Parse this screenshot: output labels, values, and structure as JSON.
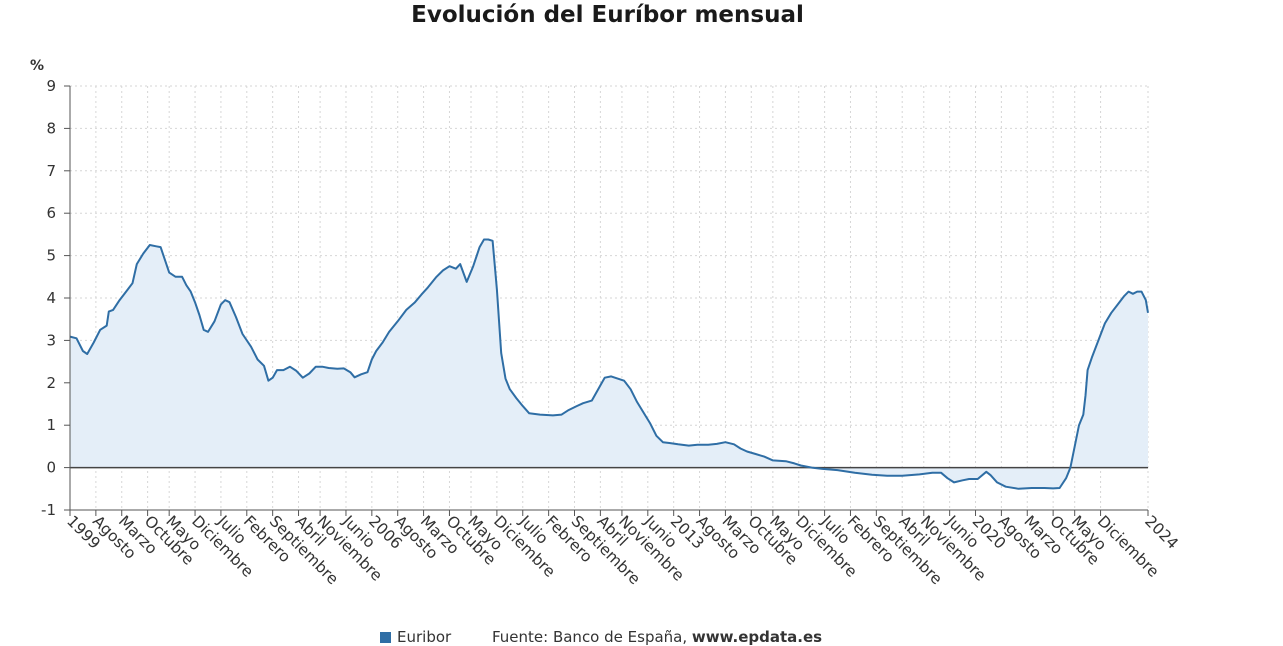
{
  "chart_data": {
    "type": "area",
    "title": "Evolución del Euríbor mensual",
    "yunit": "%",
    "ylim": [
      -1,
      9
    ],
    "yticks": [
      -1,
      0,
      1,
      2,
      3,
      4,
      5,
      6,
      7,
      8,
      9
    ],
    "xlim": [
      1999.0,
      2024.0
    ],
    "grid": true,
    "xtick_labels": [
      {
        "x": 1999.0,
        "label": "1999"
      },
      {
        "x": 1999.6,
        "label": "Agosto"
      },
      {
        "x": 2000.2,
        "label": "Marzo"
      },
      {
        "x": 2000.8,
        "label": "Octubre"
      },
      {
        "x": 2001.3,
        "label": "Mayo"
      },
      {
        "x": 2001.9,
        "label": "Diciembre"
      },
      {
        "x": 2002.5,
        "label": "Julio"
      },
      {
        "x": 2003.1,
        "label": "Febrero"
      },
      {
        "x": 2003.7,
        "label": "Septiembre"
      },
      {
        "x": 2004.3,
        "label": "Abril"
      },
      {
        "x": 2004.8,
        "label": "Noviembre"
      },
      {
        "x": 2005.4,
        "label": "Junio"
      },
      {
        "x": 2006.0,
        "label": "2006"
      },
      {
        "x": 2006.6,
        "label": "Agosto"
      },
      {
        "x": 2007.2,
        "label": "Marzo"
      },
      {
        "x": 2007.8,
        "label": "Octubre"
      },
      {
        "x": 2008.3,
        "label": "Mayo"
      },
      {
        "x": 2008.9,
        "label": "Diciembre"
      },
      {
        "x": 2009.5,
        "label": "Julio"
      },
      {
        "x": 2010.1,
        "label": "Febrero"
      },
      {
        "x": 2010.7,
        "label": "Septiembre"
      },
      {
        "x": 2011.3,
        "label": "Abril"
      },
      {
        "x": 2011.8,
        "label": "Noviembre"
      },
      {
        "x": 2012.4,
        "label": "Junio"
      },
      {
        "x": 2013.0,
        "label": "2013"
      },
      {
        "x": 2013.6,
        "label": "Agosto"
      },
      {
        "x": 2014.2,
        "label": "Marzo"
      },
      {
        "x": 2014.8,
        "label": "Octubre"
      },
      {
        "x": 2015.3,
        "label": "Mayo"
      },
      {
        "x": 2015.9,
        "label": "Diciembre"
      },
      {
        "x": 2016.5,
        "label": "Julio"
      },
      {
        "x": 2017.1,
        "label": "Febrero"
      },
      {
        "x": 2017.7,
        "label": "Septiembre"
      },
      {
        "x": 2018.3,
        "label": "Abril"
      },
      {
        "x": 2018.8,
        "label": "Noviembre"
      },
      {
        "x": 2019.4,
        "label": "Junio"
      },
      {
        "x": 2020.0,
        "label": "2020"
      },
      {
        "x": 2020.6,
        "label": "Agosto"
      },
      {
        "x": 2021.2,
        "label": "Marzo"
      },
      {
        "x": 2021.8,
        "label": "Octubre"
      },
      {
        "x": 2022.3,
        "label": "Mayo"
      },
      {
        "x": 2022.9,
        "label": "Diciembre"
      },
      {
        "x": 2024.0,
        "label": "2024"
      }
    ],
    "series": [
      {
        "name": "Euribor",
        "color": "#2f6ea5",
        "fill": "#e4eef8",
        "points": [
          [
            1999.0,
            3.09
          ],
          [
            1999.15,
            3.05
          ],
          [
            1999.3,
            2.75
          ],
          [
            1999.4,
            2.68
          ],
          [
            1999.55,
            2.95
          ],
          [
            1999.7,
            3.25
          ],
          [
            1999.85,
            3.35
          ],
          [
            1999.9,
            3.68
          ],
          [
            2000.0,
            3.72
          ],
          [
            2000.15,
            3.95
          ],
          [
            2000.3,
            4.15
          ],
          [
            2000.45,
            4.35
          ],
          [
            2000.55,
            4.8
          ],
          [
            2000.7,
            5.05
          ],
          [
            2000.85,
            5.25
          ],
          [
            2001.0,
            5.22
          ],
          [
            2001.1,
            5.2
          ],
          [
            2001.2,
            4.9
          ],
          [
            2001.3,
            4.6
          ],
          [
            2001.45,
            4.5
          ],
          [
            2001.6,
            4.5
          ],
          [
            2001.7,
            4.3
          ],
          [
            2001.8,
            4.15
          ],
          [
            2001.9,
            3.9
          ],
          [
            2002.0,
            3.6
          ],
          [
            2002.1,
            3.25
          ],
          [
            2002.2,
            3.2
          ],
          [
            2002.35,
            3.45
          ],
          [
            2002.5,
            3.85
          ],
          [
            2002.6,
            3.95
          ],
          [
            2002.7,
            3.9
          ],
          [
            2002.85,
            3.55
          ],
          [
            2003.0,
            3.15
          ],
          [
            2003.2,
            2.85
          ],
          [
            2003.35,
            2.55
          ],
          [
            2003.5,
            2.4
          ],
          [
            2003.6,
            2.05
          ],
          [
            2003.7,
            2.12
          ],
          [
            2003.8,
            2.3
          ],
          [
            2003.95,
            2.3
          ],
          [
            2004.1,
            2.38
          ],
          [
            2004.25,
            2.28
          ],
          [
            2004.4,
            2.12
          ],
          [
            2004.55,
            2.22
          ],
          [
            2004.7,
            2.38
          ],
          [
            2004.85,
            2.38
          ],
          [
            2005.0,
            2.35
          ],
          [
            2005.2,
            2.33
          ],
          [
            2005.35,
            2.34
          ],
          [
            2005.5,
            2.25
          ],
          [
            2005.6,
            2.13
          ],
          [
            2005.75,
            2.2
          ],
          [
            2005.9,
            2.25
          ],
          [
            2006.0,
            2.55
          ],
          [
            2006.1,
            2.75
          ],
          [
            2006.25,
            2.95
          ],
          [
            2006.4,
            3.2
          ],
          [
            2006.6,
            3.45
          ],
          [
            2006.8,
            3.72
          ],
          [
            2007.0,
            3.9
          ],
          [
            2007.15,
            4.08
          ],
          [
            2007.3,
            4.25
          ],
          [
            2007.5,
            4.5
          ],
          [
            2007.65,
            4.65
          ],
          [
            2007.8,
            4.75
          ],
          [
            2007.95,
            4.69
          ],
          [
            2008.05,
            4.8
          ],
          [
            2008.2,
            4.38
          ],
          [
            2008.35,
            4.75
          ],
          [
            2008.5,
            5.2
          ],
          [
            2008.6,
            5.38
          ],
          [
            2008.7,
            5.38
          ],
          [
            2008.8,
            5.35
          ],
          [
            2008.9,
            4.2
          ],
          [
            2009.0,
            2.7
          ],
          [
            2009.1,
            2.1
          ],
          [
            2009.2,
            1.85
          ],
          [
            2009.35,
            1.64
          ],
          [
            2009.5,
            1.45
          ],
          [
            2009.65,
            1.28
          ],
          [
            2009.9,
            1.25
          ],
          [
            2010.2,
            1.23
          ],
          [
            2010.4,
            1.25
          ],
          [
            2010.55,
            1.35
          ],
          [
            2010.75,
            1.45
          ],
          [
            2010.9,
            1.52
          ],
          [
            2011.1,
            1.58
          ],
          [
            2011.25,
            1.85
          ],
          [
            2011.4,
            2.12
          ],
          [
            2011.55,
            2.15
          ],
          [
            2011.7,
            2.1
          ],
          [
            2011.85,
            2.05
          ],
          [
            2012.0,
            1.85
          ],
          [
            2012.15,
            1.55
          ],
          [
            2012.3,
            1.3
          ],
          [
            2012.45,
            1.05
          ],
          [
            2012.6,
            0.75
          ],
          [
            2012.75,
            0.6
          ],
          [
            2012.9,
            0.58
          ],
          [
            2013.1,
            0.55
          ],
          [
            2013.35,
            0.52
          ],
          [
            2013.55,
            0.54
          ],
          [
            2013.8,
            0.54
          ],
          [
            2014.0,
            0.56
          ],
          [
            2014.2,
            0.6
          ],
          [
            2014.4,
            0.55
          ],
          [
            2014.55,
            0.45
          ],
          [
            2014.7,
            0.38
          ],
          [
            2014.9,
            0.32
          ],
          [
            2015.1,
            0.26
          ],
          [
            2015.3,
            0.17
          ],
          [
            2015.6,
            0.15
          ],
          [
            2015.8,
            0.1
          ],
          [
            2015.95,
            0.05
          ],
          [
            2016.2,
            0.0
          ],
          [
            2016.45,
            -0.03
          ],
          [
            2016.8,
            -0.06
          ],
          [
            2017.2,
            -0.12
          ],
          [
            2017.6,
            -0.17
          ],
          [
            2017.95,
            -0.19
          ],
          [
            2018.3,
            -0.19
          ],
          [
            2018.7,
            -0.16
          ],
          [
            2019.0,
            -0.12
          ],
          [
            2019.2,
            -0.12
          ],
          [
            2019.35,
            -0.25
          ],
          [
            2019.5,
            -0.35
          ],
          [
            2019.7,
            -0.3
          ],
          [
            2019.85,
            -0.27
          ],
          [
            2020.05,
            -0.27
          ],
          [
            2020.25,
            -0.1
          ],
          [
            2020.35,
            -0.18
          ],
          [
            2020.5,
            -0.35
          ],
          [
            2020.7,
            -0.45
          ],
          [
            2021.0,
            -0.5
          ],
          [
            2021.3,
            -0.48
          ],
          [
            2021.6,
            -0.48
          ],
          [
            2021.8,
            -0.49
          ],
          [
            2021.95,
            -0.48
          ],
          [
            2022.1,
            -0.25
          ],
          [
            2022.2,
            0.0
          ],
          [
            2022.3,
            0.5
          ],
          [
            2022.4,
            1.0
          ],
          [
            2022.5,
            1.25
          ],
          [
            2022.55,
            1.7
          ],
          [
            2022.6,
            2.3
          ],
          [
            2022.7,
            2.6
          ],
          [
            2022.85,
            3.0
          ],
          [
            2023.0,
            3.4
          ],
          [
            2023.15,
            3.65
          ],
          [
            2023.3,
            3.85
          ],
          [
            2023.45,
            4.05
          ],
          [
            2023.55,
            4.15
          ],
          [
            2023.65,
            4.1
          ],
          [
            2023.75,
            4.15
          ],
          [
            2023.85,
            4.15
          ],
          [
            2023.95,
            3.95
          ],
          [
            2024.0,
            3.65
          ]
        ]
      }
    ]
  },
  "footer": {
    "legend_label": "Euribor",
    "source_label": "Fuente: Banco de España,",
    "source_site": "www.epdata.es"
  }
}
